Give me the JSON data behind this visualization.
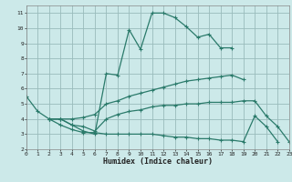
{
  "title": "",
  "xlabel": "Humidex (Indice chaleur)",
  "bg_color": "#cce9e9",
  "grid_color": "#99bbbb",
  "line_color": "#2a7a6a",
  "xlim": [
    0,
    23
  ],
  "ylim": [
    2,
    11.5
  ],
  "xticks": [
    0,
    1,
    2,
    3,
    4,
    5,
    6,
    7,
    8,
    9,
    10,
    11,
    12,
    13,
    14,
    15,
    16,
    17,
    18,
    19,
    20,
    21,
    22,
    23
  ],
  "yticks": [
    2,
    3,
    4,
    5,
    6,
    7,
    8,
    9,
    10,
    11
  ],
  "lines": [
    {
      "x": [
        0,
        1,
        2,
        3,
        4,
        5,
        6,
        7,
        8,
        9,
        10,
        11,
        12,
        13,
        14,
        15,
        16,
        17,
        18
      ],
      "y": [
        5.5,
        4.5,
        4.0,
        4.0,
        3.6,
        3.2,
        3.0,
        7.0,
        6.9,
        9.9,
        8.6,
        11.0,
        11.0,
        10.7,
        10.1,
        9.4,
        9.6,
        8.7,
        8.7
      ]
    },
    {
      "x": [
        2,
        3,
        4,
        5,
        6,
        7,
        8,
        9,
        10,
        11,
        12,
        13,
        14,
        15,
        16,
        17,
        18,
        19
      ],
      "y": [
        4.0,
        4.0,
        4.0,
        4.1,
        4.3,
        5.0,
        5.2,
        5.5,
        5.7,
        5.9,
        6.1,
        6.3,
        6.5,
        6.6,
        6.7,
        6.8,
        6.9,
        6.6
      ]
    },
    {
      "x": [
        2,
        3,
        4,
        5,
        6,
        7,
        8,
        9,
        10,
        11,
        12,
        13,
        14,
        15,
        16,
        17,
        18,
        19,
        20,
        21,
        22
      ],
      "y": [
        4.0,
        3.6,
        3.3,
        3.1,
        3.1,
        3.0,
        3.0,
        3.0,
        3.0,
        3.0,
        2.9,
        2.8,
        2.8,
        2.7,
        2.7,
        2.6,
        2.6,
        2.5,
        4.2,
        3.5,
        2.5
      ]
    },
    {
      "x": [
        2,
        3,
        4,
        5,
        6,
        7,
        8,
        9,
        10,
        11,
        12,
        13,
        14,
        15,
        16,
        17,
        18,
        19,
        20,
        21,
        22,
        23
      ],
      "y": [
        4.0,
        4.0,
        3.6,
        3.5,
        3.2,
        4.0,
        4.3,
        4.5,
        4.6,
        4.8,
        4.9,
        4.9,
        5.0,
        5.0,
        5.1,
        5.1,
        5.1,
        5.2,
        5.2,
        4.2,
        3.5,
        2.5
      ]
    }
  ]
}
